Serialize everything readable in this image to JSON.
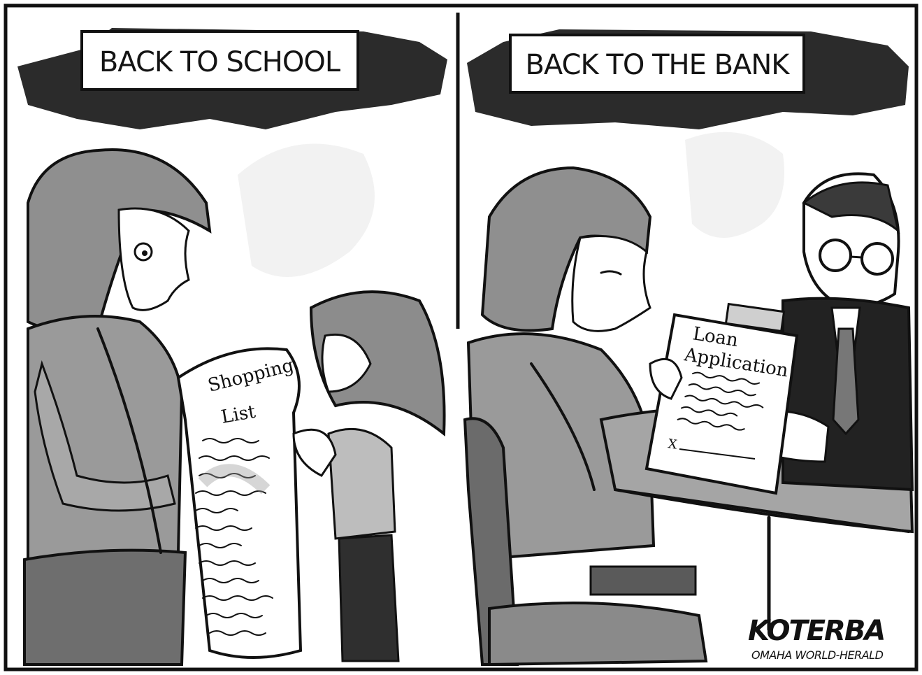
{
  "panels": {
    "left": {
      "banner": "BACK TO SCHOOL",
      "list_title_line1": "Shopping",
      "list_title_line2": "List"
    },
    "right": {
      "banner": "BACK TO THE BANK",
      "doc_title_line1": "Loan",
      "doc_title_line2": "Application",
      "signature_mark": "X"
    }
  },
  "credits": {
    "artist_signature": "KOTERBA",
    "publication": "OMAHA WORLD-HERALD"
  },
  "colors": {
    "ink": "#111111",
    "wash_dark": "#3a3a3a",
    "wash_mid": "#9a9a9a",
    "wash_light": "#cfcfcf",
    "paper": "#ffffff"
  }
}
